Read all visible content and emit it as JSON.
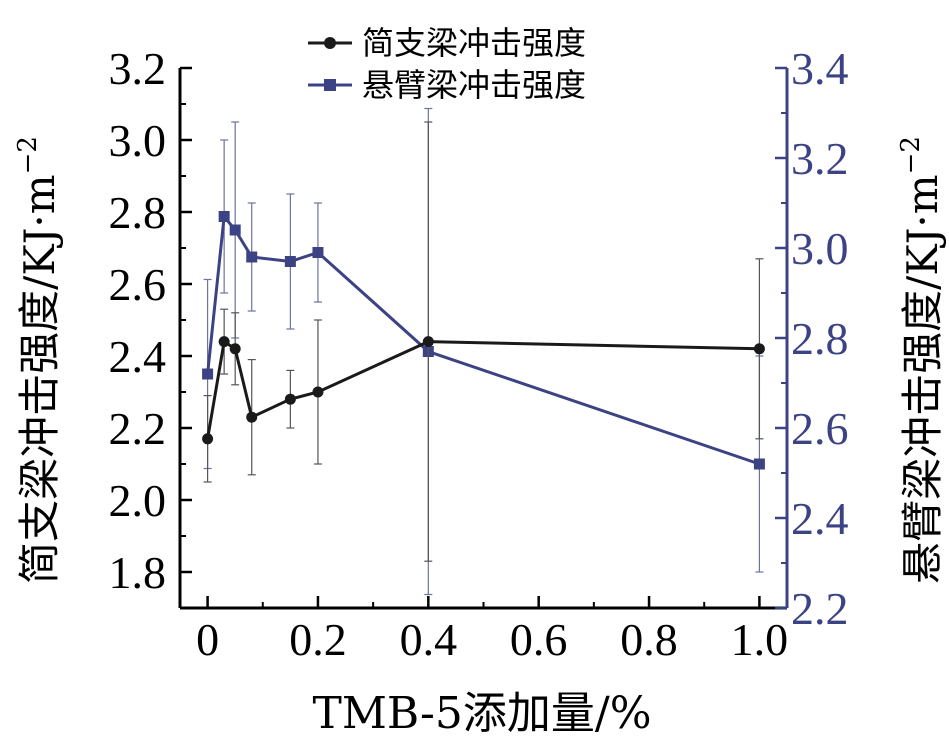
{
  "chart_data": {
    "type": "line",
    "x": [
      0,
      0.03,
      0.05,
      0.08,
      0.15,
      0.2,
      0.4,
      1.0
    ],
    "x_ticks": [
      "0",
      "0.2",
      "0.4",
      "0.6",
      "0.8",
      "1.0"
    ],
    "x_tick_values": [
      0,
      0.2,
      0.4,
      0.6,
      0.8,
      1.0
    ],
    "xlim": [
      -0.05,
      1.05
    ],
    "xlabel": "TMB-5添加量/%",
    "left_axis": {
      "label": "简支梁冲击强度/KJ·m",
      "label_sup": "−2",
      "ylim": [
        1.7,
        3.2
      ],
      "ticks": [
        "1.8",
        "2.0",
        "2.2",
        "2.4",
        "2.6",
        "2.8",
        "3.0",
        "3.2"
      ],
      "tick_values": [
        1.8,
        2.0,
        2.2,
        2.4,
        2.6,
        2.8,
        3.0,
        3.2
      ],
      "color": "#000000"
    },
    "right_axis": {
      "label": "悬臂梁冲击强度/KJ·m",
      "label_sup": "−2",
      "ylim": [
        2.2,
        3.4
      ],
      "ticks": [
        "2.2",
        "2.4",
        "2.6",
        "2.8",
        "3.0",
        "3.2",
        "3.4"
      ],
      "tick_values": [
        2.2,
        2.4,
        2.6,
        2.8,
        3.0,
        3.2,
        3.4
      ],
      "color": "#3c4385"
    },
    "series": [
      {
        "name": "简支梁冲击强度",
        "axis": "left",
        "marker": "circle",
        "color": "#1a1a1a",
        "values": [
          2.17,
          2.44,
          2.42,
          2.23,
          2.28,
          2.3,
          2.44,
          2.42
        ],
        "error": [
          0.12,
          0.09,
          0.1,
          0.16,
          0.08,
          0.2,
          0.61,
          0.25
        ]
      },
      {
        "name": "悬臂梁冲击强度",
        "axis": "right",
        "marker": "square",
        "color": "#3c4385",
        "values": [
          2.72,
          3.07,
          3.04,
          2.98,
          2.97,
          2.99,
          2.77,
          2.52
        ],
        "error": [
          0.21,
          0.17,
          0.24,
          0.12,
          0.15,
          0.11,
          0.54,
          0.24
        ]
      }
    ],
    "legend_position": "top-center",
    "grid": false
  }
}
